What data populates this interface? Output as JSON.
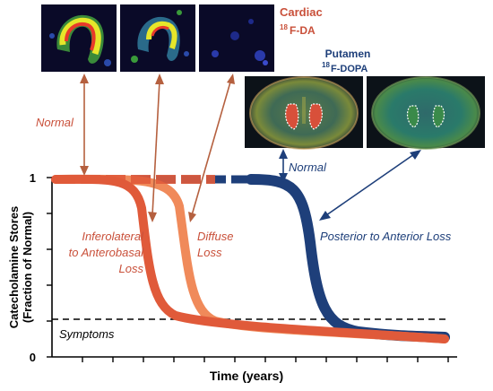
{
  "cardiac_title": "Cardiac",
  "cardiac_tracer_sup": "18",
  "cardiac_tracer": "F-DA",
  "putamen_title": "Putamen",
  "putamen_tracer_sup": "18",
  "putamen_tracer": "F-DOPA",
  "label_normal_cardiac": "Normal",
  "label_normal_putamen": "Normal",
  "label_inferolateral_1": "Inferolateral",
  "label_inferolateral_2": "to Anterobasal",
  "label_inferolateral_3": "Loss",
  "label_diffuse_1": "Diffuse",
  "label_diffuse_2": "Loss",
  "label_posterior": "Posterior to Anterior Loss",
  "label_symptoms": "Symptoms",
  "y_axis_label_1": "Catecholamine Stores",
  "y_axis_label_2": "(Fraction of Normal)",
  "x_axis_label": "Time (years)",
  "y_tick_top": "1",
  "y_tick_bottom": "0",
  "colors": {
    "cardiac_curve_1": "#e05a3a",
    "cardiac_curve_2": "#f08a5a",
    "putamen_curve": "#1e3f7a",
    "cardiac_text": "#c9503a",
    "putamen_text": "#1e3f7a",
    "arrow_cardiac": "#b5603f",
    "arrow_putamen": "#1e3f7a"
  }
}
